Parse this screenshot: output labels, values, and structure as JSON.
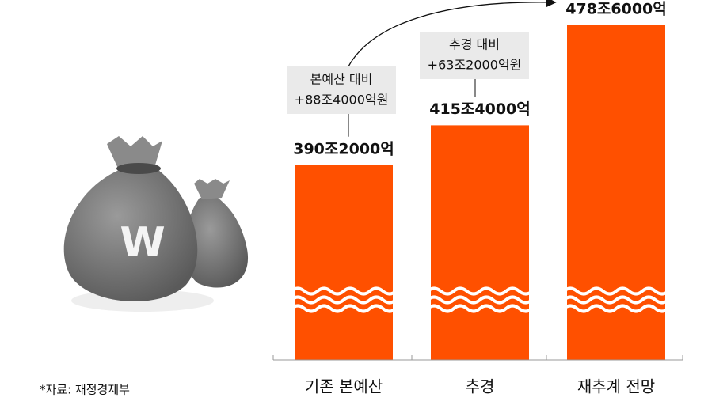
{
  "chart_data": {
    "type": "bar",
    "categories": [
      "기존 본예산",
      "추경",
      "재추계 전망"
    ],
    "values": [
      390.2,
      415.4,
      478.6
    ],
    "value_labels": [
      "390조2000억",
      "415조4000억",
      "478조6000억"
    ],
    "color": "#ff5000",
    "annotations": [
      {
        "lines": [
          "본예산 대비",
          "+88조4000억원"
        ]
      },
      {
        "lines": [
          "추경 대비",
          "+63조2000억원"
        ]
      }
    ],
    "illustration_text": "W",
    "source": "*자료: 재정경제부"
  }
}
